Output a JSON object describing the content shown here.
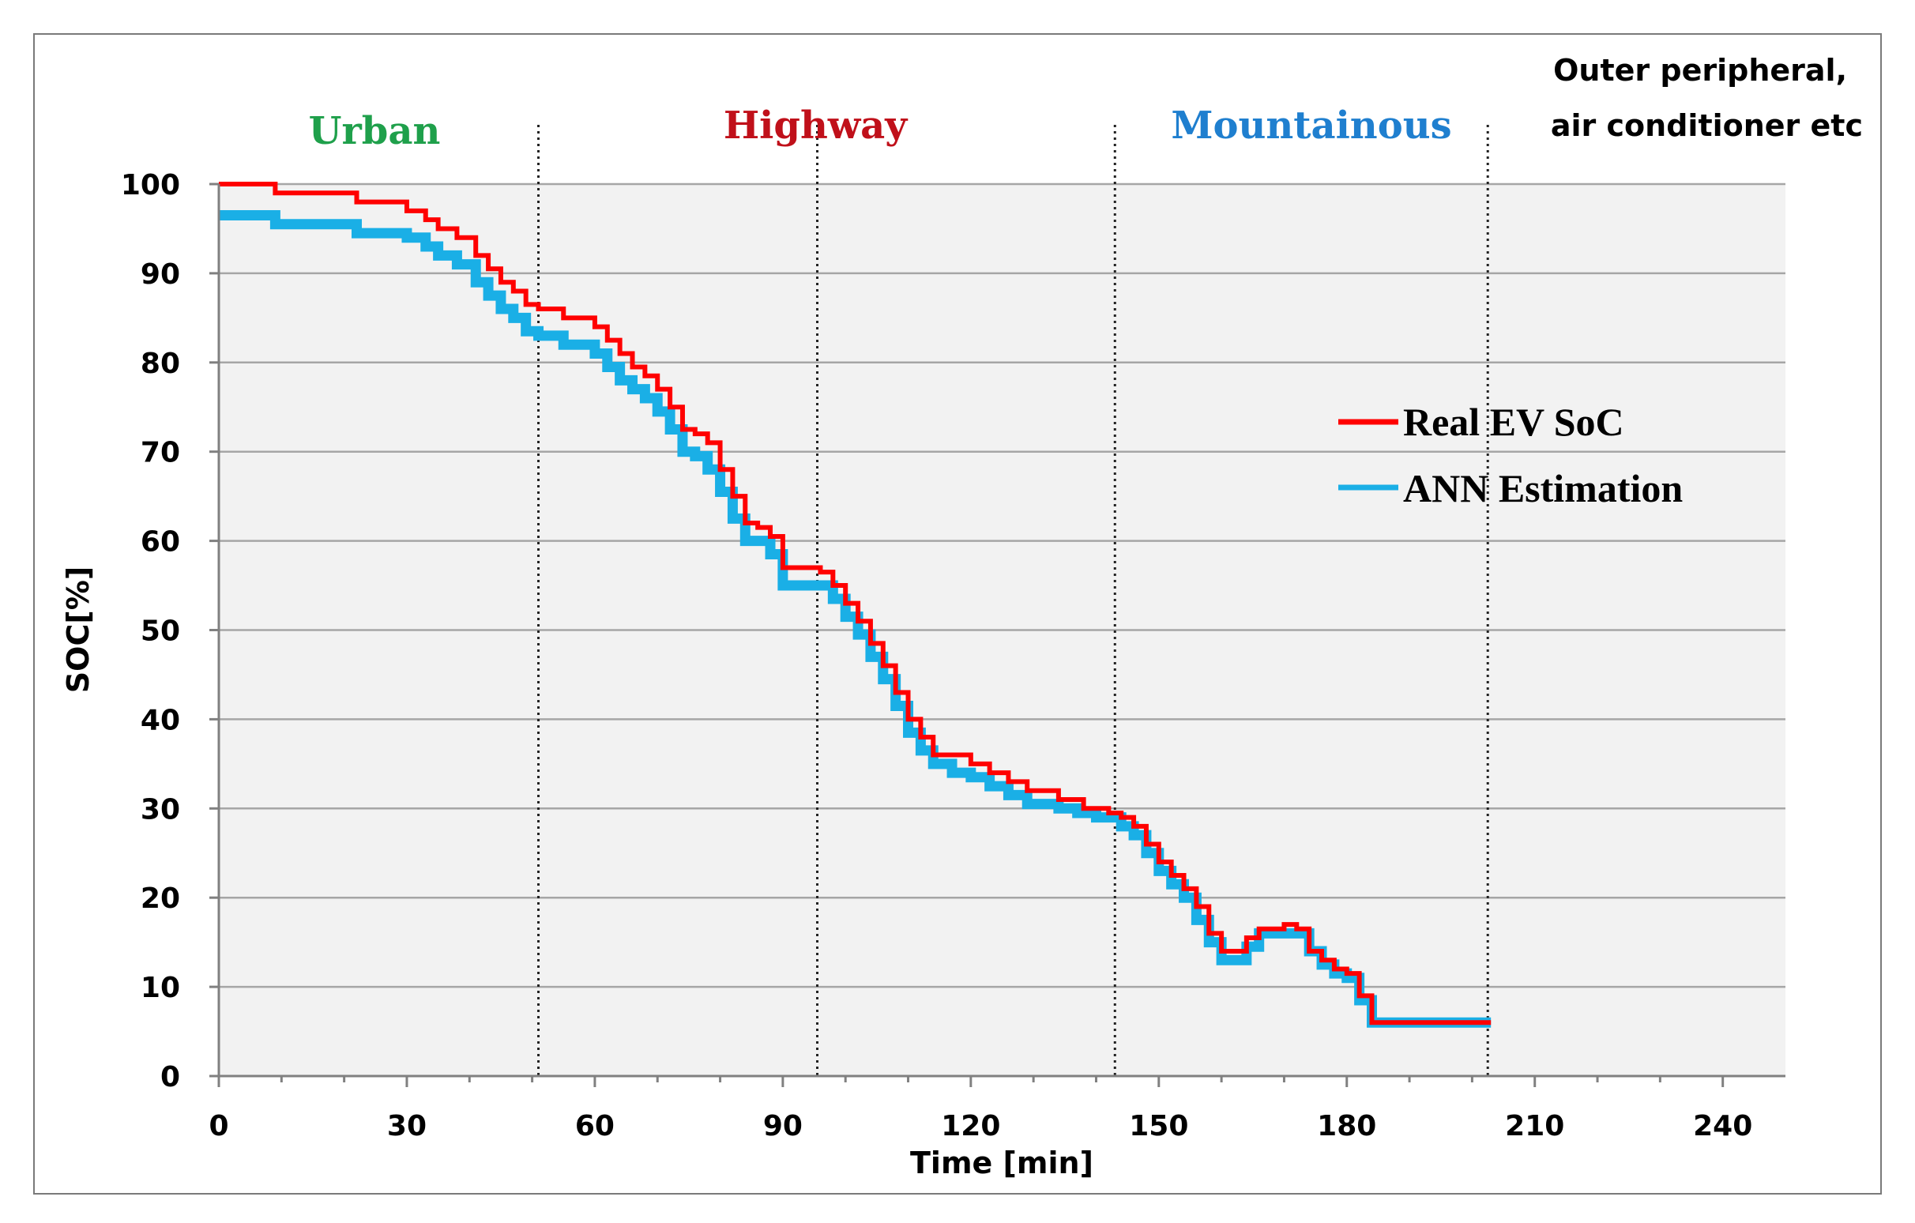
{
  "chart_data": {
    "type": "line",
    "title": "",
    "xlabel": "Time [min]",
    "ylabel": "SOC[%]",
    "xlim": [
      0,
      250
    ],
    "ylim": [
      0,
      100
    ],
    "x_ticks": [
      0,
      30,
      60,
      90,
      120,
      150,
      180,
      210,
      240
    ],
    "y_ticks": [
      0,
      10,
      20,
      30,
      40,
      50,
      60,
      70,
      80,
      90,
      100
    ],
    "grid": true,
    "legend_position": "right",
    "segments": [
      {
        "label": "Urban",
        "color": "#1fa04b"
      },
      {
        "label": "Highway",
        "color": "#c0101a"
      },
      {
        "label": "Mountainous",
        "color": "#1f7fcf"
      }
    ],
    "segment_boundaries": [
      51,
      95.5,
      143,
      202.5
    ],
    "side_note": [
      "Outer peripheral,",
      "air conditioner etc"
    ],
    "series": [
      {
        "name": "Real EV SoC",
        "color": "#ff0000",
        "x": [
          0,
          9,
          22,
          30,
          33,
          35,
          38,
          41,
          43,
          45,
          47,
          49,
          51,
          55,
          60,
          62,
          64,
          66,
          68,
          70,
          72,
          74,
          76,
          78,
          80,
          82,
          84,
          86,
          88,
          90,
          92,
          96,
          98,
          100,
          102,
          104,
          106,
          108,
          110,
          112,
          114,
          117,
          120,
          123,
          126,
          129,
          134,
          137,
          138,
          140,
          142,
          144,
          146,
          148,
          150,
          152,
          154,
          156,
          158,
          160,
          162,
          164,
          166,
          170,
          172,
          174,
          176,
          178,
          180,
          182,
          184,
          190,
          195,
          200,
          203
        ],
        "values": [
          100,
          99,
          98,
          97,
          96,
          95,
          94,
          92,
          90.5,
          89,
          88,
          86.5,
          86,
          85,
          84,
          82.5,
          81,
          79.5,
          78.5,
          77,
          75,
          72.5,
          72,
          71,
          68,
          65,
          62,
          61.5,
          60.5,
          57,
          57,
          56.5,
          55,
          53,
          51,
          48.5,
          46,
          43,
          40,
          38,
          36,
          36,
          35,
          34,
          33,
          32,
          31,
          31,
          30,
          30,
          29.5,
          29,
          28,
          26,
          24,
          22.5,
          21,
          19,
          16,
          14,
          14,
          15.5,
          16.5,
          17,
          16.5,
          14,
          13,
          12,
          11.5,
          9,
          6,
          6,
          6,
          6,
          6
        ]
      },
      {
        "name": "ANN Estimation",
        "color": "#1aafe6",
        "x": [
          0,
          9,
          22,
          30,
          33,
          35,
          38,
          41,
          43,
          45,
          47,
          49,
          51,
          55,
          60,
          62,
          64,
          66,
          68,
          70,
          72,
          74,
          76,
          78,
          80,
          82,
          84,
          86,
          88,
          90,
          92,
          96,
          98,
          100,
          102,
          104,
          106,
          108,
          110,
          112,
          114,
          117,
          120,
          123,
          126,
          129,
          134,
          137,
          138,
          140,
          142,
          144,
          146,
          148,
          150,
          152,
          154,
          156,
          158,
          160,
          162,
          164,
          166,
          170,
          172,
          174,
          176,
          178,
          180,
          182,
          184,
          190,
          195,
          200,
          203
        ],
        "values": [
          96.5,
          95.5,
          94.5,
          94,
          93,
          92,
          91,
          89,
          87.5,
          86,
          85,
          83.5,
          83,
          82,
          81,
          79.5,
          78,
          77,
          76,
          74.5,
          72.5,
          70,
          69.5,
          68,
          65.5,
          62.5,
          60,
          60,
          58.5,
          55,
          55,
          55,
          53.5,
          51.5,
          49.5,
          47,
          44.5,
          41.5,
          38.5,
          36.5,
          35,
          34,
          33.5,
          32.5,
          31.5,
          30.5,
          30,
          29.5,
          29.5,
          29,
          29,
          28,
          27,
          25,
          23,
          21.5,
          20,
          17.5,
          15,
          13,
          13,
          14.5,
          16,
          16,
          16,
          14,
          12.5,
          11.5,
          11,
          8.5,
          6,
          6,
          6,
          6,
          6
        ]
      }
    ]
  }
}
